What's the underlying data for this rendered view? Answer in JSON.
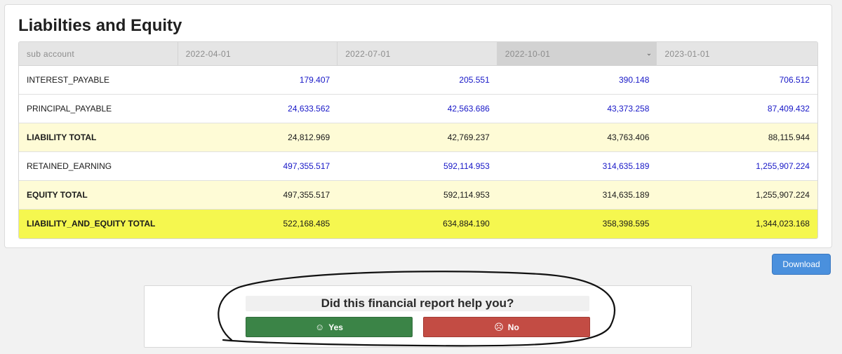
{
  "card": {
    "title": "Liabilties and Equity"
  },
  "table": {
    "headers": [
      "sub account",
      "2022-04-01",
      "2022-07-01",
      "2022-10-01",
      "2023-01-01"
    ],
    "sorted_column_icon": "chevron-down-icon",
    "rows": [
      {
        "label": "INTEREST_PAYABLE",
        "values": [
          "179.407",
          "205.551",
          "390.148",
          "706.512"
        ]
      },
      {
        "label": "PRINCIPAL_PAYABLE",
        "values": [
          "24,633.562",
          "42,563.686",
          "43,373.258",
          "87,409.432"
        ]
      },
      {
        "label": "LIABILITY TOTAL",
        "values": [
          "24,812.969",
          "42,769.237",
          "43,763.406",
          "88,115.944"
        ]
      },
      {
        "label": "RETAINED_EARNING",
        "values": [
          "497,355.517",
          "592,114.953",
          "314,635.189",
          "1,255,907.224"
        ]
      },
      {
        "label": "EQUITY TOTAL",
        "values": [
          "497,355.517",
          "592,114.953",
          "314,635.189",
          "1,255,907.224"
        ]
      },
      {
        "label": "LIABILITY_AND_EQUITY TOTAL",
        "values": [
          "522,168.485",
          "634,884.190",
          "358,398.595",
          "1,344,023.168"
        ]
      }
    ]
  },
  "download": {
    "label": "Download"
  },
  "feedback": {
    "question": "Did this financial report help you?",
    "yes_label": "Yes",
    "no_label": "No",
    "yes_icon": "smile-icon",
    "no_icon": "frown-icon"
  },
  "colors": {
    "account_value": "#1717c7",
    "total_row": "#fefbd6",
    "grand_total_row": "#f5f74f",
    "yes_button": "#3b8447",
    "no_button": "#c34c44",
    "download_button": "#4a90dd"
  }
}
